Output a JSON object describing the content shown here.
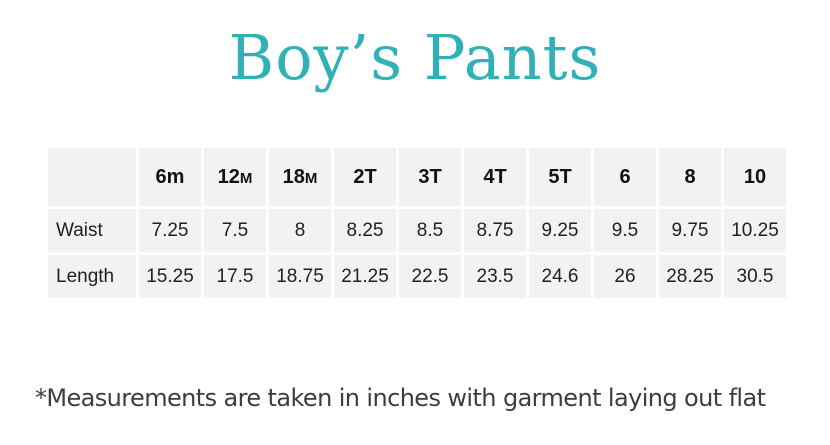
{
  "title": "Boy’s Pants",
  "title_color": "#2fb1b7",
  "table": {
    "columns": [
      "6m",
      "12M",
      "18M",
      "2T",
      "3T",
      "4T",
      "5T",
      "6",
      "8",
      "10"
    ],
    "rows": [
      {
        "label": "Waist",
        "values": [
          "7.25",
          "7.5",
          "8",
          "8.25",
          "8.5",
          "8.75",
          "9.25",
          "9.5",
          "9.75",
          "10.25"
        ]
      },
      {
        "label": "Length",
        "values": [
          "15.25",
          "17.5",
          "18.75",
          "21.25",
          "22.5",
          "23.5",
          "24.6",
          "26",
          "28.25",
          "30.5"
        ]
      }
    ]
  },
  "footnote": "*Measurements are taken in inches with garment laying out flat"
}
